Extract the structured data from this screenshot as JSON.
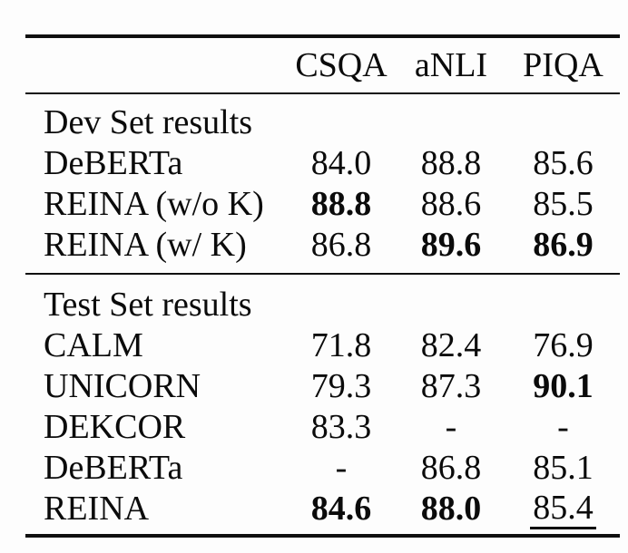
{
  "page": {
    "background": "#fdfdfd",
    "text_color": "#0b0b0b",
    "rule_color": "#101010"
  },
  "table": {
    "header": {
      "col1": "",
      "col2": "CSQA",
      "col3": "aNLI",
      "col4": "PIQA"
    },
    "sections": [
      {
        "title": "Dev Set results",
        "rows": [
          {
            "label": "DeBERTa",
            "values": [
              {
                "text": "84.0"
              },
              {
                "text": "88.8"
              },
              {
                "text": "85.6"
              }
            ]
          },
          {
            "label": "REINA (w/o K)",
            "values": [
              {
                "text": "88.8",
                "bold": true
              },
              {
                "text": "88.6"
              },
              {
                "text": "85.5"
              }
            ]
          },
          {
            "label": "REINA (w/ K)",
            "values": [
              {
                "text": "86.8"
              },
              {
                "text": "89.6",
                "bold": true
              },
              {
                "text": "86.9",
                "bold": true
              }
            ]
          }
        ]
      },
      {
        "title": "Test Set results",
        "rows": [
          {
            "label": "CALM",
            "values": [
              {
                "text": "71.8"
              },
              {
                "text": "82.4"
              },
              {
                "text": "76.9"
              }
            ]
          },
          {
            "label": "UNICORN",
            "values": [
              {
                "text": "79.3"
              },
              {
                "text": "87.3"
              },
              {
                "text": "90.1",
                "bold": true
              }
            ]
          },
          {
            "label": "DEKCOR",
            "values": [
              {
                "text": "83.3"
              },
              {
                "text": "-"
              },
              {
                "text": "-"
              }
            ]
          },
          {
            "label": "DeBERTa",
            "values": [
              {
                "text": "-"
              },
              {
                "text": "86.8"
              },
              {
                "text": "85.1"
              }
            ]
          },
          {
            "label": "REINA",
            "values": [
              {
                "text": "84.6",
                "bold": true
              },
              {
                "text": "88.0",
                "bold": true
              },
              {
                "text": "85.4",
                "underline": true
              }
            ]
          }
        ]
      }
    ]
  }
}
